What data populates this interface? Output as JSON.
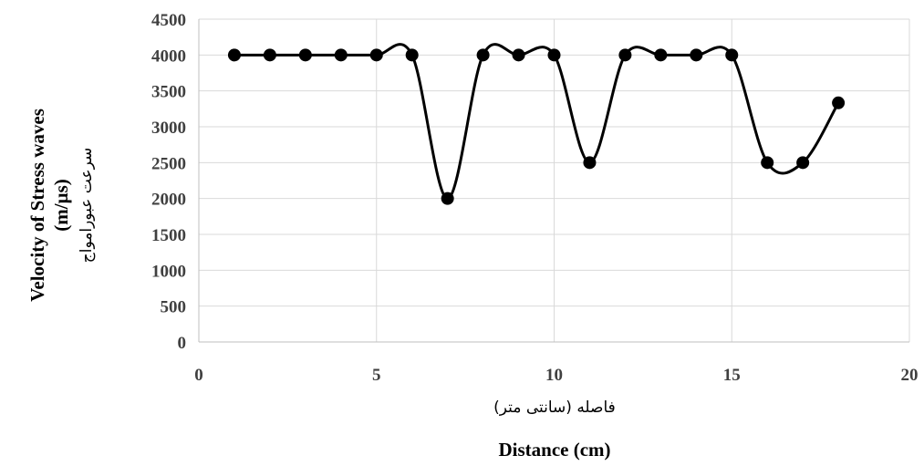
{
  "chart_data": {
    "type": "scatter",
    "title": "",
    "xlabel_en": "Distance (cm)",
    "xlabel_fa": "فاصله (سانتی متر)",
    "ylabel_en_line1": "Velocity of Stress waves",
    "ylabel_en_line2": "(m/µs)",
    "ylabel_fa": "سرعت عبورامواج",
    "xlim": [
      0,
      20
    ],
    "ylim": [
      0,
      4500
    ],
    "x_ticks": [
      0,
      5,
      10,
      15,
      20
    ],
    "y_ticks": [
      0,
      500,
      1000,
      1500,
      2000,
      2500,
      3000,
      3500,
      4000,
      4500
    ],
    "grid": true,
    "smooth_line": true,
    "line_color": "#000000",
    "marker_color": "#000000",
    "series": [
      {
        "x": [
          1,
          2,
          3,
          4,
          5,
          6,
          7,
          8,
          9,
          10,
          11,
          12,
          13,
          14,
          15,
          16,
          17,
          18
        ],
        "values": [
          4000,
          4000,
          4000,
          4000,
          4000,
          4000,
          2000,
          4000,
          4000,
          4000,
          2500,
          4000,
          4000,
          4000,
          4000,
          2500,
          2500,
          3333
        ]
      }
    ]
  }
}
